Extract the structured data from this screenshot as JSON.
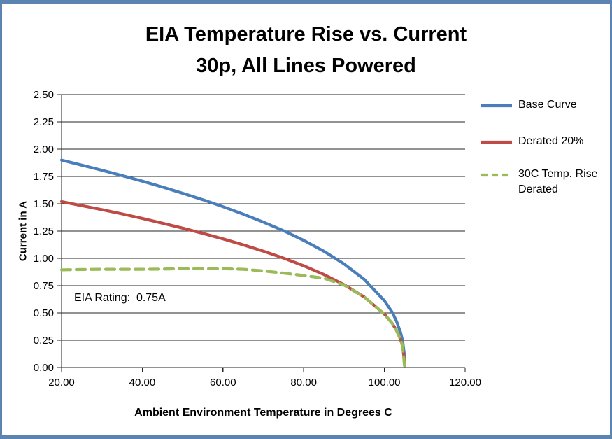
{
  "colors": {
    "frame_border": "#5b84b1",
    "grid": "#262626",
    "axis": "#262626",
    "base_curve": "#4a7ebb",
    "derated": "#bf4b47",
    "temp_rise": "#9bbb59"
  },
  "chart_data": {
    "type": "line",
    "title_lines": [
      "EIA Temperature Rise vs. Current",
      "30p, All Lines Powered"
    ],
    "xlabel": "Ambient Environment Temperature in Degrees C",
    "ylabel": "Current in A",
    "xlim": [
      20,
      120
    ],
    "ylim": [
      0,
      2.5
    ],
    "x_tick_values": [
      20,
      40,
      60,
      80,
      100,
      120
    ],
    "x_tick_labels": [
      "20.00",
      "40.00",
      "60.00",
      "80.00",
      "100.00",
      "120.00"
    ],
    "y_tick_values": [
      0,
      0.25,
      0.5,
      0.75,
      1.0,
      1.25,
      1.5,
      1.75,
      2.0,
      2.25,
      2.5
    ],
    "y_tick_labels": [
      "0.00",
      "0.25",
      "0.50",
      "0.75",
      "1.00",
      "1.25",
      "1.50",
      "1.75",
      "2.00",
      "2.25",
      "2.50"
    ],
    "grid": "horizontal",
    "legend_position": "right",
    "annotation": "EIA Rating:  0.75A",
    "series": [
      {
        "name": "Base Curve",
        "color": "#4a7ebb",
        "dash": null,
        "points": [
          [
            20,
            1.9
          ],
          [
            25,
            1.854
          ],
          [
            30,
            1.807
          ],
          [
            35,
            1.758
          ],
          [
            40,
            1.707
          ],
          [
            45,
            1.653
          ],
          [
            50,
            1.596
          ],
          [
            55,
            1.537
          ],
          [
            60,
            1.473
          ],
          [
            65,
            1.405
          ],
          [
            70,
            1.332
          ],
          [
            75,
            1.253
          ],
          [
            80,
            1.165
          ],
          [
            85,
            1.065
          ],
          [
            90,
            0.949
          ],
          [
            95,
            0.807
          ],
          [
            100,
            0.612
          ],
          [
            102,
            0.503
          ],
          [
            103,
            0.424
          ],
          [
            104,
            0.321
          ],
          [
            104.5,
            0.244
          ],
          [
            105,
            0.1
          ]
        ]
      },
      {
        "name": "Derated 20%",
        "color": "#bf4b47",
        "dash": null,
        "points": [
          [
            20,
            1.52
          ],
          [
            25,
            1.483
          ],
          [
            30,
            1.446
          ],
          [
            35,
            1.407
          ],
          [
            40,
            1.366
          ],
          [
            45,
            1.322
          ],
          [
            50,
            1.277
          ],
          [
            55,
            1.229
          ],
          [
            60,
            1.178
          ],
          [
            65,
            1.124
          ],
          [
            70,
            1.066
          ],
          [
            75,
            1.002
          ],
          [
            80,
            0.932
          ],
          [
            85,
            0.852
          ],
          [
            90,
            0.759
          ],
          [
            95,
            0.646
          ],
          [
            100,
            0.489
          ],
          [
            102,
            0.402
          ],
          [
            103,
            0.339
          ],
          [
            104,
            0.257
          ],
          [
            104.5,
            0.195
          ],
          [
            105,
            0.05
          ]
        ]
      },
      {
        "name": "30C Temp. Rise Derated",
        "label_lines": [
          "30C Temp. Rise",
          "Derated"
        ],
        "color": "#9bbb59",
        "dash": [
          13,
          8
        ],
        "points": [
          [
            20,
            0.895
          ],
          [
            25,
            0.898
          ],
          [
            30,
            0.9
          ],
          [
            35,
            0.9
          ],
          [
            40,
            0.9
          ],
          [
            45,
            0.902
          ],
          [
            50,
            0.905
          ],
          [
            55,
            0.905
          ],
          [
            60,
            0.905
          ],
          [
            65,
            0.9
          ],
          [
            70,
            0.885
          ],
          [
            75,
            0.865
          ],
          [
            80,
            0.843
          ],
          [
            85,
            0.818
          ],
          [
            90,
            0.755
          ],
          [
            95,
            0.645
          ],
          [
            100,
            0.489
          ],
          [
            102,
            0.402
          ],
          [
            103,
            0.339
          ],
          [
            104,
            0.257
          ],
          [
            104.5,
            0.195
          ],
          [
            105,
            0.005
          ]
        ]
      }
    ]
  }
}
